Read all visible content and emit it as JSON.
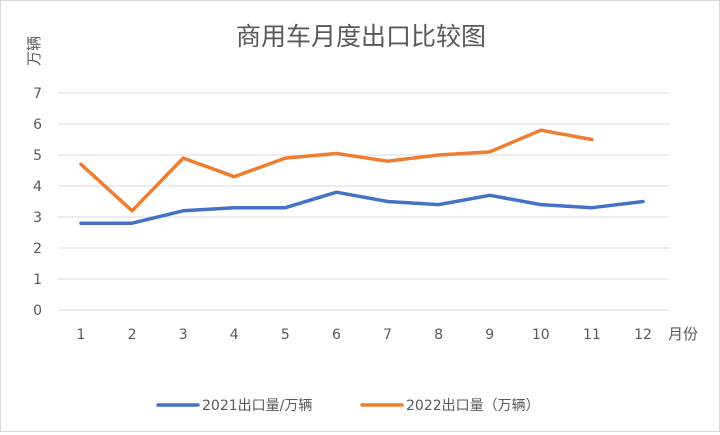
{
  "chart_data": {
    "type": "line",
    "title": "商用车月度出口比较图",
    "ylabel": "万辆",
    "xlabel": "月份",
    "categories": [
      "1",
      "2",
      "3",
      "4",
      "5",
      "6",
      "7",
      "8",
      "9",
      "10",
      "11",
      "12"
    ],
    "y_ticks": [
      "0",
      "1",
      "2",
      "3",
      "4",
      "5",
      "6",
      "7"
    ],
    "ylim": [
      0,
      7
    ],
    "grid": true,
    "legend_position": "bottom",
    "series": [
      {
        "name": "2021出口量/万辆",
        "color": "#4472C4",
        "values": [
          2.8,
          2.8,
          3.2,
          3.3,
          3.3,
          3.8,
          3.5,
          3.4,
          3.7,
          3.4,
          3.3,
          3.5
        ]
      },
      {
        "name": "2022出口量（万辆）",
        "color": "#ED7D31",
        "values": [
          4.7,
          3.2,
          4.9,
          4.3,
          4.9,
          5.05,
          4.8,
          5.0,
          5.1,
          5.8,
          5.5,
          null
        ]
      }
    ]
  }
}
